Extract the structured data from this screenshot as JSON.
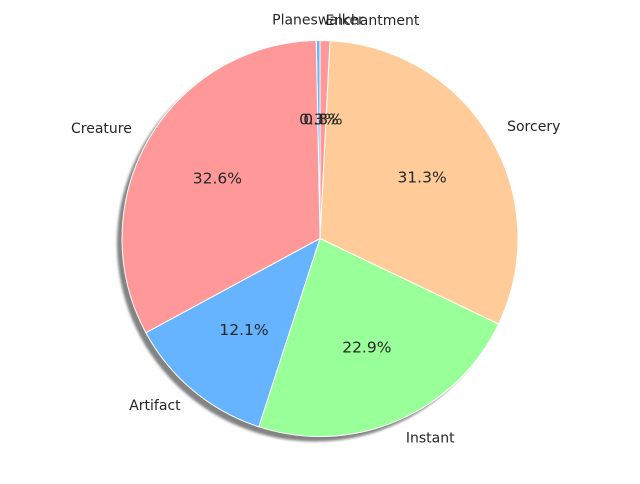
{
  "chart_data": {
    "type": "pie",
    "title": "",
    "shadow": true,
    "start_angle": 90,
    "direction": "counterclockwise",
    "legend": "none",
    "slices": [
      {
        "label": "Planeswalker",
        "pct_label": "0.3%",
        "value": 0.3,
        "color": "#66b3ff"
      },
      {
        "label": "Creature",
        "pct_label": "32.6%",
        "value": 32.6,
        "color": "#ff9999"
      },
      {
        "label": "Artifact",
        "pct_label": "12.1%",
        "value": 12.1,
        "color": "#66b3ff"
      },
      {
        "label": "Instant",
        "pct_label": "22.9%",
        "value": 22.9,
        "color": "#99ff99"
      },
      {
        "label": "Sorcery",
        "pct_label": "31.3%",
        "value": 31.3,
        "color": "#ffcc99"
      },
      {
        "label": "Enchantment",
        "pct_label": "0.8%",
        "value": 0.8,
        "color": "#ff9999"
      }
    ]
  }
}
